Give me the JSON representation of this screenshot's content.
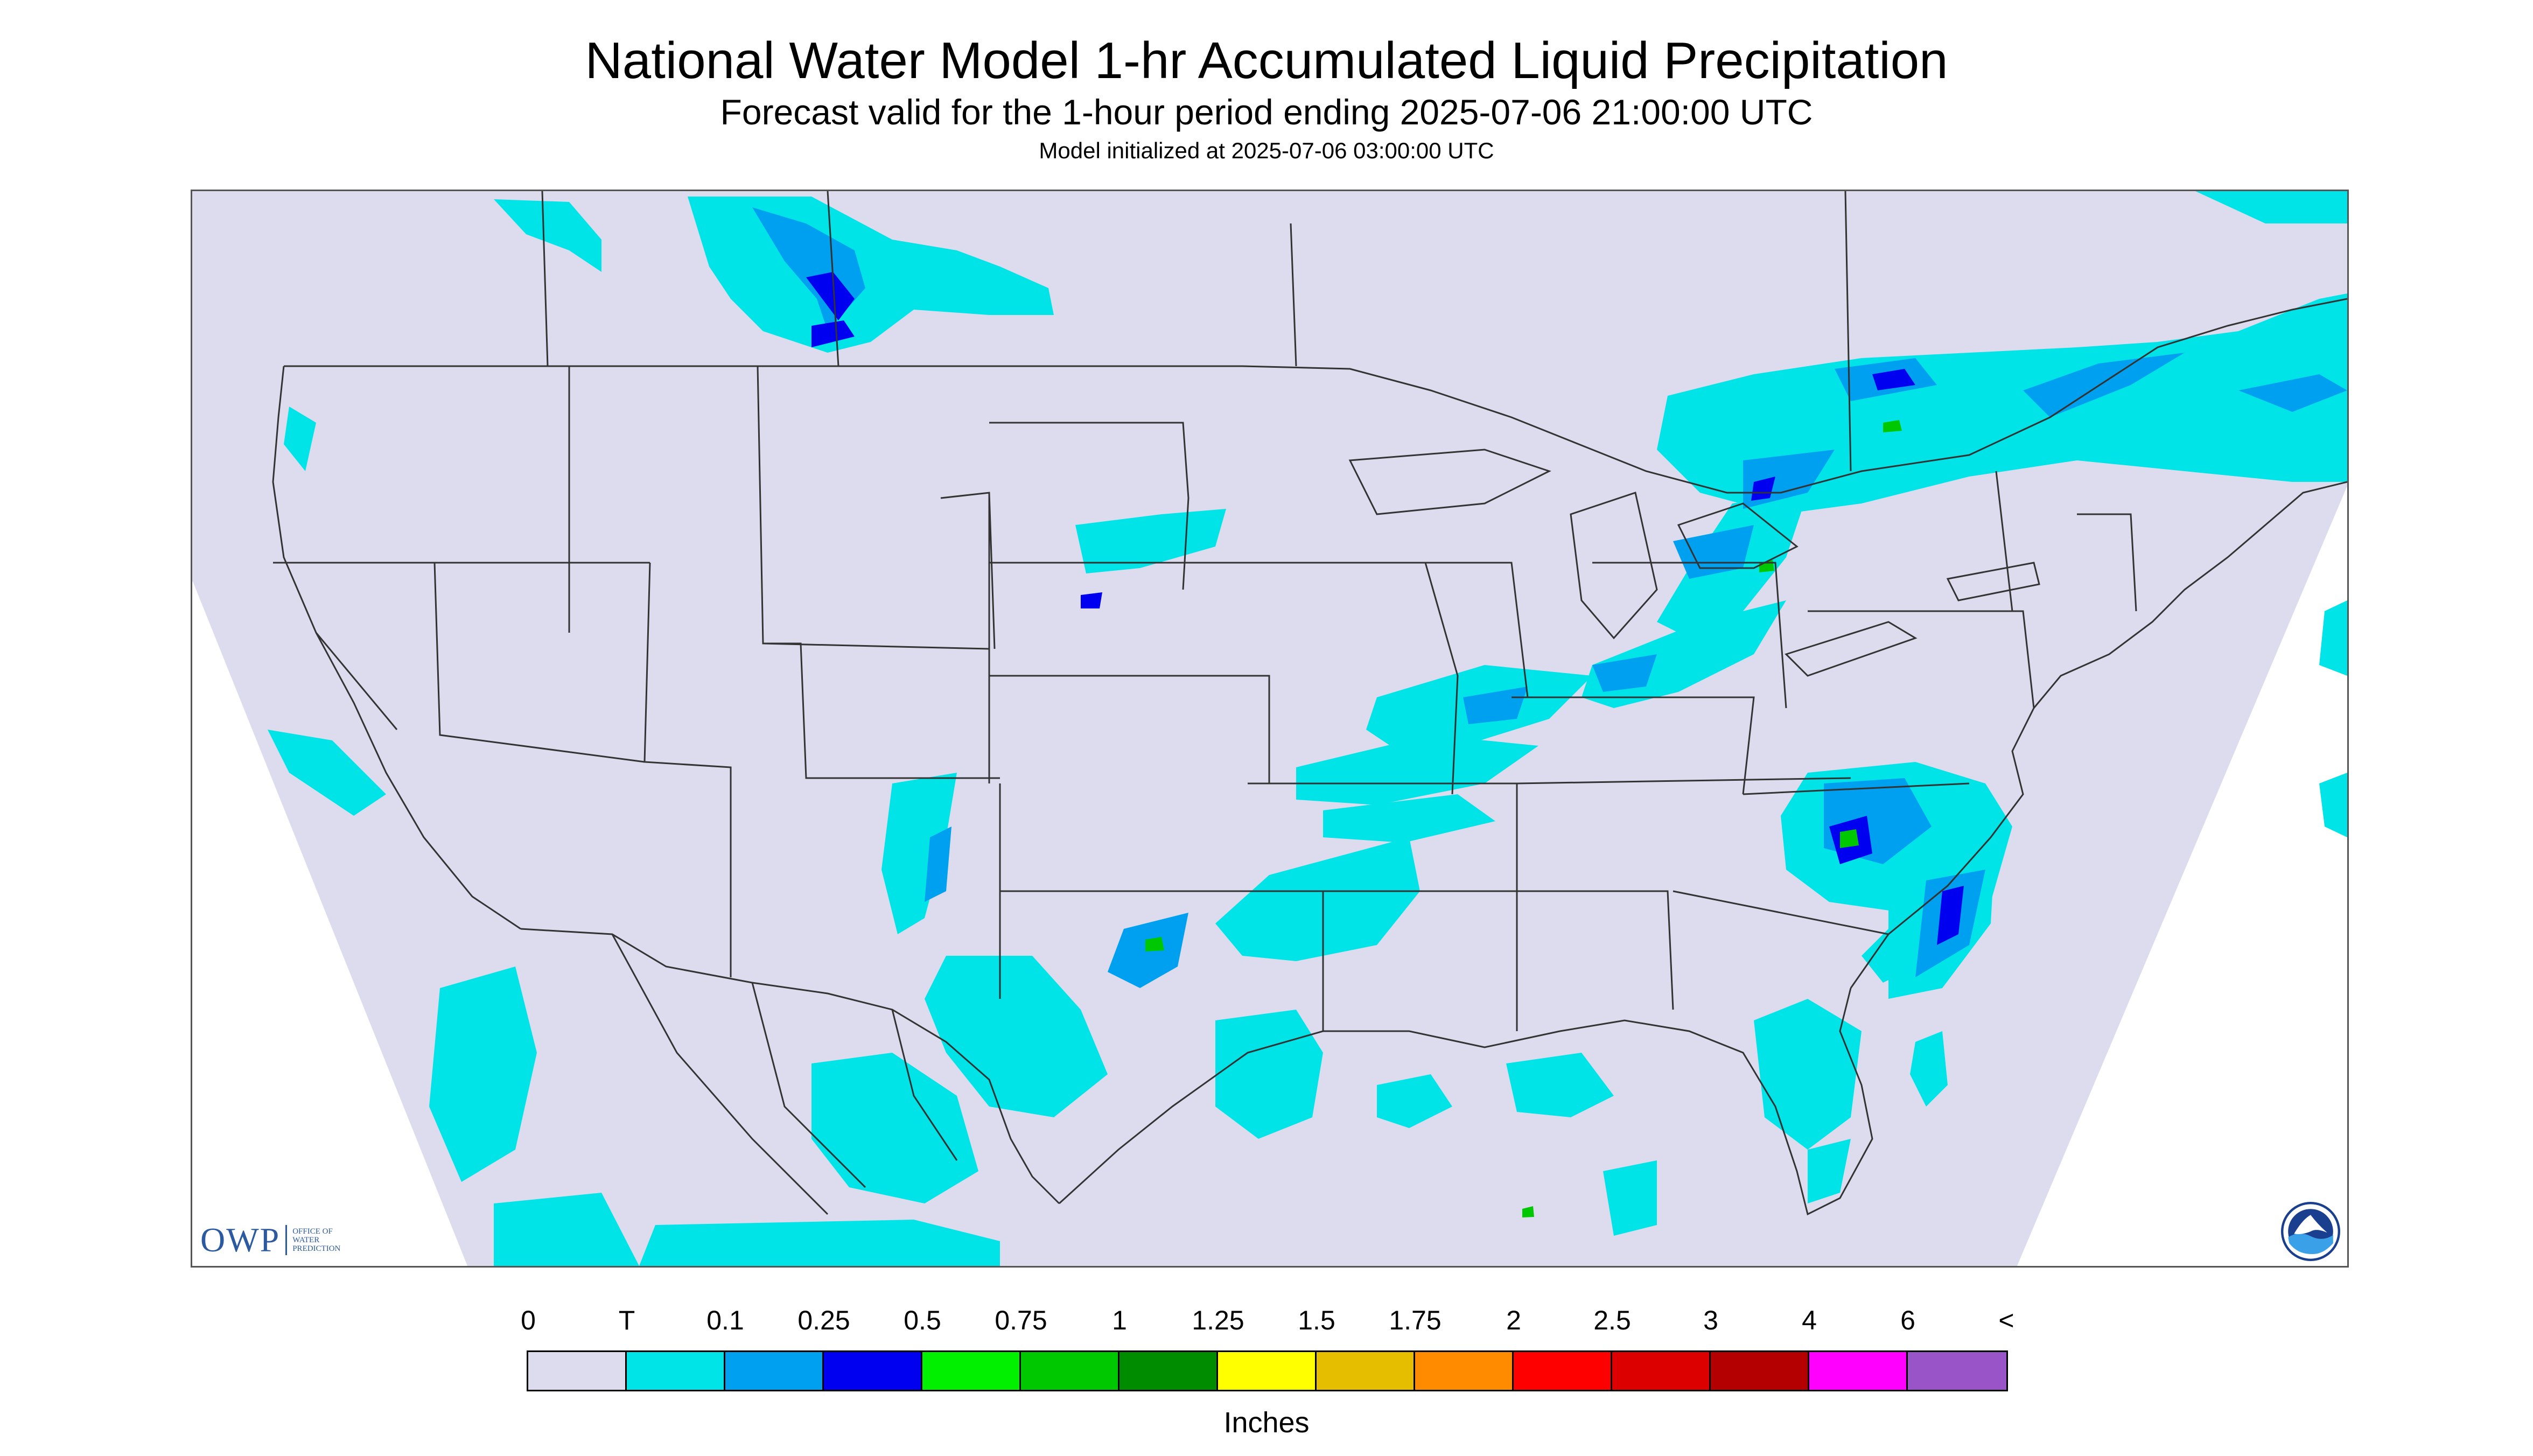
{
  "header": {
    "title": "National Water Model 1-hr Accumulated Liquid Precipitation",
    "subtitle": "Forecast valid for the 1-hour period ending 2025-07-06 21:00:00 UTC",
    "init_line": "Model initialized at 2025-07-06 03:00:00 UTC"
  },
  "map": {
    "background_color": "#dcdcee",
    "outside_color": "#ffffff",
    "boundary_color": "#333333",
    "logos": {
      "owp": {
        "letters": "OWP",
        "line1": "OFFICE OF",
        "line2": "WATER",
        "line3": "PREDICTION"
      },
      "noaa": {
        "icon": "noaa-icon"
      }
    }
  },
  "legend": {
    "breaks": [
      "0",
      "T",
      "0.1",
      "0.25",
      "0.5",
      "0.75",
      "1",
      "1.25",
      "1.5",
      "1.75",
      "2",
      "2.5",
      "3",
      "4",
      "6",
      "<"
    ],
    "colors": [
      "#dcdcee",
      "#00e4e8",
      "#00a0f0",
      "#0000f0",
      "#00f000",
      "#00c800",
      "#008c00",
      "#ffff00",
      "#e6be00",
      "#ff8c00",
      "#ff0000",
      "#dc0000",
      "#b40000",
      "#ff00ff",
      "#9955c8"
    ],
    "units": "Inches"
  }
}
